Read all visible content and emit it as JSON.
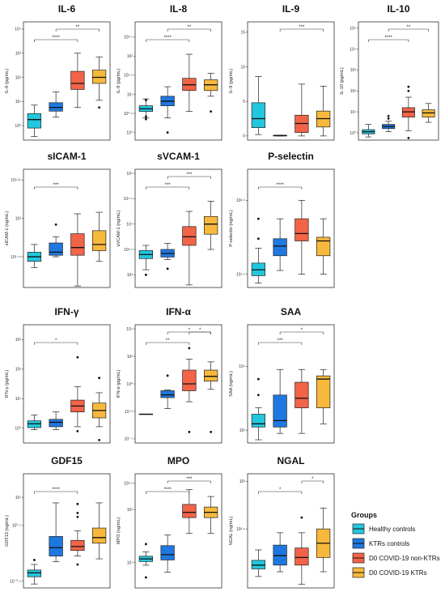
{
  "colors": {
    "Healthy controls": "#22c7dd",
    "KTRs controls": "#1f78e0",
    "D0 COVID-19 non-KTRs": "#f26348",
    "D0 COVID-19 KTRs": "#f7b93c"
  },
  "legend": {
    "title": "Groups",
    "placement": "bottom-right",
    "items": [
      "Healthy controls",
      "KTRs controls",
      "D0 COVID-19 non-KTRs",
      "D0 COVID-19 KTRs"
    ]
  },
  "chart_data": [
    {
      "type": "box",
      "title": "IL-6",
      "ylabel": "IL-6 (pg/mL)",
      "scale": "log10",
      "ylim": [
        -0.6,
        4.3
      ],
      "ticks": [
        {
          "v": 0,
          "label": "10⁰"
        },
        {
          "v": 1,
          "label": "10¹"
        },
        {
          "v": 2,
          "label": "10²"
        },
        {
          "v": 3,
          "label": "10³"
        },
        {
          "v": 4,
          "label": "10⁴"
        }
      ],
      "groups": [
        "Healthy controls",
        "KTRs controls",
        "D0 COVID-19 non-KTRs",
        "D0 COVID-19 KTRs"
      ],
      "boxes": [
        {
          "min": -0.45,
          "q1": -0.1,
          "median": 0.25,
          "q3": 0.5,
          "max": 0.85,
          "outliers": []
        },
        {
          "min": 0.35,
          "q1": 0.6,
          "median": 0.75,
          "q3": 0.95,
          "max": 1.4,
          "outliers": []
        },
        {
          "min": 0.75,
          "q1": 1.5,
          "median": 1.75,
          "q3": 2.25,
          "max": 3.0,
          "outliers": []
        },
        {
          "min": 1.05,
          "q1": 1.75,
          "median": 2.0,
          "q3": 2.3,
          "max": 2.85,
          "outliers": [
            0.75
          ]
        }
      ],
      "significance": [
        {
          "from": 0,
          "to": 2,
          "label": "****"
        },
        {
          "from": 1,
          "to": 3,
          "label": "**"
        }
      ]
    },
    {
      "type": "box",
      "title": "IL-8",
      "ylabel": "IL-8 (pg/mL)",
      "scale": "log10",
      "ylim": [
        -0.2,
        2.9
      ],
      "ticks": [
        {
          "v": 0,
          "label": "10⁰"
        },
        {
          "v": 0.5,
          "label": "10⁰·⁵"
        },
        {
          "v": 1,
          "label": "10¹"
        },
        {
          "v": 1.5,
          "label": "10¹·⁵"
        },
        {
          "v": 2,
          "label": "10²"
        },
        {
          "v": 2.5,
          "label": "10²·⁵"
        }
      ],
      "groups": [
        "Healthy controls",
        "KTRs controls",
        "D0 COVID-19 non-KTRs",
        "D0 COVID-19 KTRs"
      ],
      "boxes": [
        {
          "min": 0.38,
          "q1": 0.55,
          "median": 0.62,
          "q3": 0.7,
          "max": 0.88,
          "outliers": [
            0.85,
            0.42,
            0.35
          ]
        },
        {
          "min": 0.38,
          "q1": 0.7,
          "median": 0.82,
          "q3": 0.95,
          "max": 1.2,
          "outliers": [
            0.0
          ]
        },
        {
          "min": 0.55,
          "q1": 1.1,
          "median": 1.25,
          "q3": 1.42,
          "max": 2.05,
          "outliers": []
        },
        {
          "min": 0.95,
          "q1": 1.1,
          "median": 1.25,
          "q3": 1.38,
          "max": 1.55,
          "outliers": [
            0.55
          ]
        }
      ],
      "significance": [
        {
          "from": 0,
          "to": 2,
          "label": "****"
        },
        {
          "from": 1,
          "to": 3,
          "label": "**"
        }
      ]
    },
    {
      "type": "box",
      "title": "IL-9",
      "ylabel": "IL-9 (pg/mL)",
      "scale": "linear",
      "ylim": [
        -0.6,
        16.5
      ],
      "ticks": [
        {
          "v": 0,
          "label": "0"
        },
        {
          "v": 5,
          "label": "5"
        },
        {
          "v": 10,
          "label": "10"
        },
        {
          "v": 15,
          "label": "15"
        }
      ],
      "groups": [
        "Healthy controls",
        "KTRs controls",
        "D0 COVID-19 non-KTRs",
        "D0 COVID-19 KTRs"
      ],
      "boxes": [
        {
          "min": 0.2,
          "q1": 1.2,
          "median": 2.5,
          "q3": 4.8,
          "max": 8.6,
          "outliers": []
        },
        {
          "min": 0.0,
          "q1": 0.0,
          "median": 0.05,
          "q3": 0.1,
          "max": 0.1,
          "outliers": []
        },
        {
          "min": 0.0,
          "q1": 0.5,
          "median": 1.8,
          "q3": 3.0,
          "max": 7.5,
          "outliers": []
        },
        {
          "min": 0.0,
          "q1": 1.3,
          "median": 2.5,
          "q3": 3.6,
          "max": 7.2,
          "outliers": []
        }
      ],
      "significance": [
        {
          "from": 1,
          "to": 3,
          "label": "***"
        }
      ]
    },
    {
      "type": "box",
      "title": "IL-10",
      "ylabel": "IL-10 (pg/mL)",
      "scale": "log10",
      "ylim": [
        -0.35,
        5.3
      ],
      "ticks": [
        {
          "v": 0,
          "label": "10⁰"
        },
        {
          "v": 1,
          "label": "10¹"
        },
        {
          "v": 2,
          "label": "10²"
        },
        {
          "v": 3,
          "label": "10³"
        },
        {
          "v": 4,
          "label": "10⁴"
        },
        {
          "v": 5,
          "label": "10⁵"
        }
      ],
      "groups": [
        "Healthy controls",
        "KTRs controls",
        "D0 COVID-19 non-KTRs",
        "D0 COVID-19 KTRs"
      ],
      "boxes": [
        {
          "min": -0.2,
          "q1": -0.05,
          "median": 0.05,
          "q3": 0.15,
          "max": 0.4,
          "outliers": []
        },
        {
          "min": 0.05,
          "q1": 0.2,
          "median": 0.3,
          "q3": 0.4,
          "max": 0.55,
          "outliers": [
            0.68,
            0.8
          ]
        },
        {
          "min": 0.1,
          "q1": 0.75,
          "median": 1.0,
          "q3": 1.2,
          "max": 1.7,
          "outliers": [
            2.0,
            2.2,
            -0.25
          ]
        },
        {
          "min": 0.5,
          "q1": 0.75,
          "median": 0.95,
          "q3": 1.1,
          "max": 1.4,
          "outliers": []
        }
      ],
      "significance": [
        {
          "from": 0,
          "to": 2,
          "label": "****"
        },
        {
          "from": 1,
          "to": 3,
          "label": "**"
        }
      ]
    },
    {
      "type": "box",
      "title": "sICAM-1",
      "ylabel": "sICAM-1 (ng/mL)",
      "scale": "log10",
      "ylim": [
        2.55,
        3.32
      ],
      "ticks": [
        {
          "v": 2.75,
          "label": "10²·⁷⁵"
        },
        {
          "v": 3.0,
          "label": "10³"
        },
        {
          "v": 3.25,
          "label": "10³·²⁵"
        }
      ],
      "groups": [
        "Healthy controls",
        "KTRs controls",
        "D0 COVID-19 non-KTRs",
        "D0 COVID-19 KTRs"
      ],
      "boxes": [
        {
          "min": 2.68,
          "q1": 2.72,
          "median": 2.75,
          "q3": 2.78,
          "max": 2.83,
          "outliers": []
        },
        {
          "min": 2.75,
          "q1": 2.76,
          "median": 2.78,
          "q3": 2.84,
          "max": 2.88,
          "outliers": [
            2.96
          ]
        },
        {
          "min": 2.56,
          "q1": 2.76,
          "median": 2.81,
          "q3": 2.9,
          "max": 3.03,
          "outliers": []
        },
        {
          "min": 2.72,
          "q1": 2.79,
          "median": 2.83,
          "q3": 2.92,
          "max": 3.04,
          "outliers": []
        }
      ],
      "significance": [
        {
          "from": 0,
          "to": 2,
          "label": "***"
        }
      ]
    },
    {
      "type": "box",
      "title": "sVCAM-1",
      "ylabel": "sVCAM-1 (ng/mL)",
      "scale": "log10",
      "ylim": [
        2.75,
        5.08
      ],
      "ticks": [
        {
          "v": 3.0,
          "label": "10³"
        },
        {
          "v": 3.5,
          "label": "10³·⁵"
        },
        {
          "v": 4.0,
          "label": "10⁴"
        },
        {
          "v": 4.5,
          "label": "10⁴·⁵"
        },
        {
          "v": 5.0,
          "label": "10⁵"
        }
      ],
      "groups": [
        "Healthy controls",
        "KTRs controls",
        "D0 COVID-19 non-KTRs",
        "D0 COVID-19 KTRs"
      ],
      "boxes": [
        {
          "min": 3.1,
          "q1": 3.32,
          "median": 3.4,
          "q3": 3.48,
          "max": 3.58,
          "outliers": [
            3.0
          ]
        },
        {
          "min": 3.3,
          "q1": 3.35,
          "median": 3.42,
          "q3": 3.5,
          "max": 3.62,
          "outliers": [
            3.12
          ]
        },
        {
          "min": 2.8,
          "q1": 3.58,
          "median": 3.75,
          "q3": 3.95,
          "max": 4.25,
          "outliers": []
        },
        {
          "min": 3.5,
          "q1": 3.8,
          "median": 4.0,
          "q3": 4.15,
          "max": 4.45,
          "outliers": []
        }
      ],
      "significance": [
        {
          "from": 0,
          "to": 2,
          "label": "***"
        },
        {
          "from": 1,
          "to": 3,
          "label": "***"
        }
      ]
    },
    {
      "type": "box",
      "title": "P-selectin",
      "ylabel": "P-selectin (ng/mL)",
      "scale": "log10",
      "ylim": [
        1.32,
        2.92
      ],
      "ticks": [
        {
          "v": 1.5,
          "label": "10¹·⁵"
        },
        {
          "v": 2.5,
          "label": "10²·⁵"
        }
      ],
      "groups": [
        "Healthy controls",
        "KTRs controls",
        "D0 COVID-19 non-KTRs",
        "D0 COVID-19 KTRs"
      ],
      "boxes": [
        {
          "min": 1.38,
          "q1": 1.48,
          "median": 1.56,
          "q3": 1.65,
          "max": 1.85,
          "outliers": [
            1.98,
            2.25
          ]
        },
        {
          "min": 1.55,
          "q1": 1.75,
          "median": 1.88,
          "q3": 1.98,
          "max": 2.25,
          "outliers": []
        },
        {
          "min": 1.5,
          "q1": 1.95,
          "median": 2.05,
          "q3": 2.25,
          "max": 2.5,
          "outliers": []
        },
        {
          "min": 1.5,
          "q1": 1.75,
          "median": 1.95,
          "q3": 2.0,
          "max": 2.25,
          "outliers": []
        }
      ],
      "significance": [
        {
          "from": 0,
          "to": 2,
          "label": "****"
        }
      ]
    },
    {
      "type": "box",
      "title": "IFN-γ",
      "ylabel": "IFN-γ (pg/mL)",
      "scale": "log10",
      "ylim": [
        -0.5,
        3.5
      ],
      "ticks": [
        {
          "v": 0,
          "label": "10⁰"
        },
        {
          "v": 1,
          "label": "10¹"
        },
        {
          "v": 2,
          "label": "10²"
        },
        {
          "v": 3,
          "label": "10³"
        }
      ],
      "groups": [
        "Healthy controls",
        "KTRs controls",
        "D0 COVID-19 non-KTRs",
        "D0 COVID-19 KTRs"
      ],
      "boxes": [
        {
          "min": -0.05,
          "q1": 0.02,
          "median": 0.15,
          "q3": 0.25,
          "max": 0.45,
          "outliers": []
        },
        {
          "min": -0.05,
          "q1": 0.05,
          "median": 0.2,
          "q3": 0.3,
          "max": 0.55,
          "outliers": []
        },
        {
          "min": 0.05,
          "q1": 0.55,
          "median": 0.75,
          "q3": 0.95,
          "max": 1.4,
          "outliers": [
            2.4,
            -0.1
          ]
        },
        {
          "min": 0.05,
          "q1": 0.35,
          "median": 0.6,
          "q3": 0.85,
          "max": 1.2,
          "outliers": [
            1.7,
            -0.4
          ]
        }
      ],
      "significance": [
        {
          "from": 0,
          "to": 2,
          "label": "*"
        }
      ]
    },
    {
      "type": "box",
      "title": "IFN-α",
      "ylabel": "IFN-α (pg/mL)",
      "scale": "log10",
      "ylim": [
        -4.3,
        4.3
      ],
      "ticks": [
        {
          "v": -4,
          "label": "10⁻⁴"
        },
        {
          "v": -2,
          "label": "10⁻²"
        },
        {
          "v": 0,
          "label": "10⁰"
        },
        {
          "v": 2,
          "label": "10²"
        },
        {
          "v": 4,
          "label": "10⁴"
        }
      ],
      "groups": [
        "Healthy controls",
        "KTRs controls",
        "D0 COVID-19 non-KTRs",
        "D0 COVID-19 KTRs"
      ],
      "boxes": [
        {
          "min": -2.2,
          "q1": -2.2,
          "median": -2.2,
          "q3": -2.2,
          "max": -2.2,
          "outliers": []
        },
        {
          "min": -1.8,
          "q1": -1.0,
          "median": -0.8,
          "q3": -0.5,
          "max": -0.45,
          "outliers": [
            0.6
          ]
        },
        {
          "min": -1.3,
          "q1": -0.5,
          "median": 0.0,
          "q3": 1.0,
          "max": 1.8,
          "outliers": [
            -3.5,
            2.6
          ]
        },
        {
          "min": -0.4,
          "q1": 0.2,
          "median": 0.55,
          "q3": 1.0,
          "max": 1.6,
          "outliers": [
            -3.5
          ]
        }
      ],
      "significance": [
        {
          "from": 0,
          "to": 2,
          "label": "**"
        },
        {
          "from": 1,
          "to": 3,
          "label": "*"
        },
        {
          "from": 2,
          "to": 3,
          "label": "*"
        }
      ]
    },
    {
      "type": "box",
      "title": "SAA",
      "ylabel": "SAA (ng/mL)",
      "scale": "log10",
      "ylim": [
        2.8,
        4.65
      ],
      "ticks": [
        {
          "v": 3,
          "label": "10³"
        },
        {
          "v": 4,
          "label": "10⁴"
        }
      ],
      "groups": [
        "Healthy controls",
        "KTRs controls",
        "D0 COVID-19 non-KTRs",
        "D0 COVID-19 KTRs"
      ],
      "boxes": [
        {
          "min": 2.85,
          "q1": 3.05,
          "median": 3.1,
          "q3": 3.25,
          "max": 3.35,
          "outliers": [
            3.55,
            3.8
          ]
        },
        {
          "min": 2.95,
          "q1": 3.05,
          "median": 3.15,
          "q3": 3.55,
          "max": 3.95,
          "outliers": []
        },
        {
          "min": 2.95,
          "q1": 3.35,
          "median": 3.5,
          "q3": 3.75,
          "max": 3.95,
          "outliers": []
        },
        {
          "min": 3.1,
          "q1": 3.35,
          "median": 3.8,
          "q3": 3.85,
          "max": 3.95,
          "outliers": []
        }
      ],
      "significance": [
        {
          "from": 0,
          "to": 2,
          "label": "***"
        },
        {
          "from": 1,
          "to": 3,
          "label": "*"
        }
      ]
    },
    {
      "type": "box",
      "title": "GDF15",
      "ylabel": "GDF15 (ng/mL)",
      "scale": "log10",
      "ylim": [
        -0.62,
        1.42
      ],
      "ticks": [
        {
          "v": -0.5,
          "label": "10⁻⁰·⁵"
        },
        {
          "v": 0.5,
          "label": "10⁰·⁵"
        },
        {
          "v": 1,
          "label": "10¹"
        }
      ],
      "groups": [
        "Healthy controls",
        "KTRs controls",
        "D0 COVID-19 non-KTRs",
        "D0 COVID-19 KTRs"
      ],
      "boxes": [
        {
          "min": -0.55,
          "q1": -0.42,
          "median": -0.35,
          "q3": -0.3,
          "max": -0.2,
          "outliers": [
            -0.12
          ]
        },
        {
          "min": -0.15,
          "q1": -0.05,
          "median": 0.1,
          "q3": 0.3,
          "max": 0.9,
          "outliers": []
        },
        {
          "min": -0.05,
          "q1": 0.05,
          "median": 0.12,
          "q3": 0.23,
          "max": 0.4,
          "outliers": [
            0.65,
            0.72,
            0.88,
            -0.2
          ]
        },
        {
          "min": -0.1,
          "q1": 0.18,
          "median": 0.28,
          "q3": 0.45,
          "max": 0.9,
          "outliers": []
        }
      ],
      "significance": [
        {
          "from": 0,
          "to": 2,
          "label": "****"
        }
      ]
    },
    {
      "type": "box",
      "title": "MPO",
      "ylabel": "MPO (ng/mL)",
      "scale": "log10",
      "ylim": [
        0.52,
        2.68
      ],
      "ticks": [
        {
          "v": 1.0,
          "label": "10¹"
        },
        {
          "v": 2.0,
          "label": "10²"
        },
        {
          "v": 2.5,
          "label": "10²·⁵"
        }
      ],
      "groups": [
        "Healthy controls",
        "KTRs controls",
        "D0 COVID-19 non-KTRs",
        "D0 COVID-19 KTRs"
      ],
      "boxes": [
        {
          "min": 0.95,
          "q1": 1.02,
          "median": 1.07,
          "q3": 1.12,
          "max": 1.2,
          "outliers": [
            1.35,
            0.72
          ]
        },
        {
          "min": 0.82,
          "q1": 1.05,
          "median": 1.15,
          "q3": 1.32,
          "max": 1.52,
          "outliers": []
        },
        {
          "min": 1.55,
          "q1": 1.85,
          "median": 1.95,
          "q3": 2.1,
          "max": 2.38,
          "outliers": []
        },
        {
          "min": 1.55,
          "q1": 1.85,
          "median": 1.95,
          "q3": 2.05,
          "max": 2.25,
          "outliers": []
        }
      ],
      "significance": [
        {
          "from": 0,
          "to": 2,
          "label": "****"
        },
        {
          "from": 1,
          "to": 3,
          "label": "***"
        }
      ]
    },
    {
      "type": "box",
      "title": "NGAL",
      "ylabel": "NGAL (ng/mL)",
      "scale": "log10",
      "ylim": [
        1.88,
        3.08
      ],
      "ticks": [
        {
          "v": 2.5,
          "label": "10²·⁵"
        },
        {
          "v": 3.0,
          "label": "10³"
        }
      ],
      "groups": [
        "Healthy controls",
        "KTRs controls",
        "D0 COVID-19 non-KTRs",
        "D0 COVID-19 KTRs"
      ],
      "boxes": [
        {
          "min": 2.0,
          "q1": 2.08,
          "median": 2.12,
          "q3": 2.17,
          "max": 2.28,
          "outliers": []
        },
        {
          "min": 2.05,
          "q1": 2.12,
          "median": 2.22,
          "q3": 2.33,
          "max": 2.46,
          "outliers": []
        },
        {
          "min": 1.92,
          "q1": 2.12,
          "median": 2.2,
          "q3": 2.3,
          "max": 2.46,
          "outliers": [
            2.62
          ]
        },
        {
          "min": 2.05,
          "q1": 2.2,
          "median": 2.35,
          "q3": 2.5,
          "max": 2.72,
          "outliers": []
        }
      ],
      "significance": [
        {
          "from": 0,
          "to": 2,
          "label": "*"
        },
        {
          "from": 2,
          "to": 3,
          "label": "*"
        }
      ]
    }
  ]
}
